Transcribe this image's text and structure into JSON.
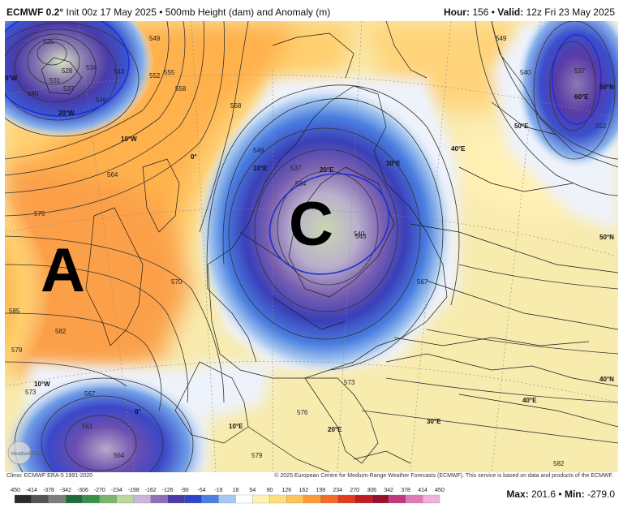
{
  "header": {
    "model": "ECMWF 0.2",
    "degree": "°",
    "init": "Init 00z 17 May 2025",
    "bullet": "•",
    "product": "500mb Height (dam) and Anomaly (m)",
    "hour_label": "Hour:",
    "hour_value": "156",
    "valid_label": "Valid:",
    "valid_value": "12z Fri 23 May 2025"
  },
  "map": {
    "high_label": "A",
    "low_label": "C",
    "contour_labels": [
      "525",
      "528",
      "531",
      "534",
      "537",
      "540",
      "543",
      "546",
      "549",
      "552",
      "555",
      "558",
      "561",
      "564",
      "567",
      "570",
      "573",
      "576",
      "579",
      "582",
      "585"
    ],
    "lon_labels": [
      "0°W",
      "20°W",
      "10°W",
      "0°",
      "10°E",
      "20°E",
      "30°E",
      "40°E",
      "50°E",
      "60°E",
      "10°W",
      "0°",
      "10°E",
      "20°E",
      "30°E",
      "40°E"
    ],
    "lat_labels": [
      "50°N",
      "50°N",
      "40°N"
    ]
  },
  "credits": {
    "climo": "Climo: ECMWF ERA-5 1991-2020",
    "copyright": "© 2025 European Centre for Medium-Range Weather Forecasts (ECMWF). This service is based on data and products of the ECMWF.",
    "logo_text": "WeatherBELL"
  },
  "colorbar": {
    "ticks": [
      "-450",
      "-414",
      "-378",
      "-342",
      "-306",
      "-270",
      "-234",
      "-198",
      "-162",
      "-126",
      "-90",
      "-54",
      "-18",
      "18",
      "54",
      "90",
      "126",
      "162",
      "198",
      "234",
      "270",
      "306",
      "342",
      "378",
      "414",
      "450"
    ],
    "colors": [
      "#2b2b2b",
      "#545454",
      "#7d7d7d",
      "#1f6b3a",
      "#3a8f4a",
      "#7ab56a",
      "#b9d99a",
      "#c9b7d8",
      "#8f6fb8",
      "#4b3aa8",
      "#2f45c8",
      "#4a7ee0",
      "#a6c8f0",
      "#ffffff",
      "#fff3b0",
      "#ffe07a",
      "#ffc35a",
      "#ff9a3a",
      "#f56a26",
      "#e33b1e",
      "#c21c1c",
      "#9a0f2a",
      "#c23a7a",
      "#e07ab8",
      "#f0b0d8"
    ]
  },
  "stats": {
    "max_label": "Max:",
    "max_value": "201.6",
    "min_label": "Min:",
    "min_value": "-279.0"
  }
}
